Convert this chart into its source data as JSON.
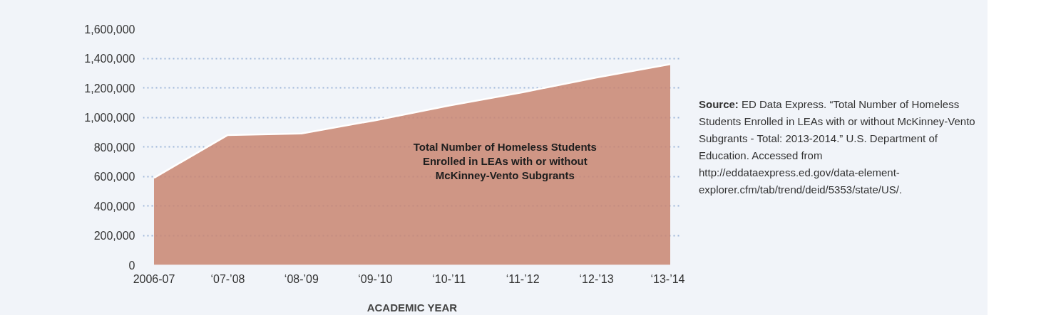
{
  "chart_data": {
    "type": "area",
    "xlabel": "ACADEMIC YEAR",
    "categories": [
      "2006-07",
      "‘07-’08",
      "‘08-’09",
      "‘09-’10",
      "‘10-’11",
      "‘11-’12",
      "‘12-’13",
      "‘13-’14"
    ],
    "series": [
      {
        "name": "Total Number of Homeless Students Enrolled in LEAs with or without McKinney-Vento Subgrants",
        "color": "#c98571",
        "values": [
          590000,
          880000,
          890000,
          980000,
          1080000,
          1170000,
          1270000,
          1360000
        ]
      }
    ],
    "ylim": [
      0,
      1600000
    ],
    "yticks": [
      {
        "value": 0,
        "label": "0"
      },
      {
        "value": 200000,
        "label": "200,000"
      },
      {
        "value": 400000,
        "label": "400,000"
      },
      {
        "value": 600000,
        "label": "600,000"
      },
      {
        "value": 800000,
        "label": "800,000"
      },
      {
        "value": 1000000,
        "label": "1,000,000"
      },
      {
        "value": 1200000,
        "label": "1,200,000"
      },
      {
        "value": 1400000,
        "label": "1,400,000"
      },
      {
        "value": 1600000,
        "label": "1,600,000"
      }
    ],
    "grid": "y",
    "annotations": [
      "Source: ED Data Express. “Total Number of Homeless Students Enrolled in LEAs with or without McKinney-Vento Subgrants - Total: 2013-2014.” U.S. Department of Education. Accessed from http://eddataexpress.ed.gov/data-element-explorer.cfm/tab/trend/deid/5353/state/US/."
    ]
  }
}
